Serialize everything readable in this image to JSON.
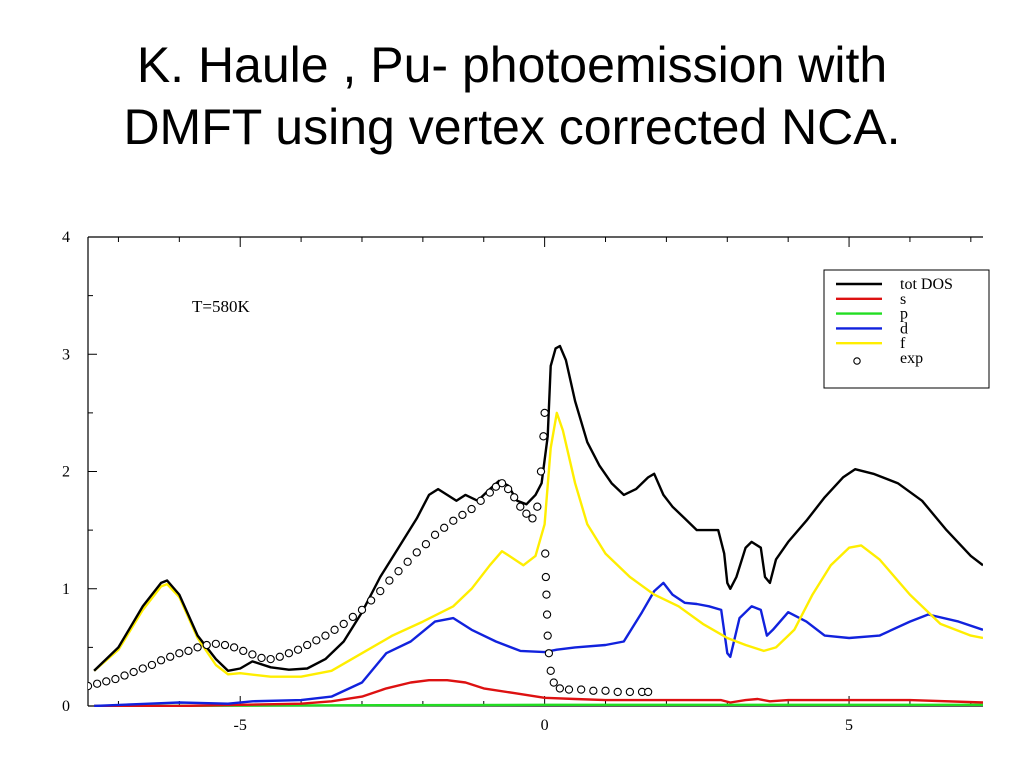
{
  "title": {
    "line1": "K. Haule , Pu- photoemission with",
    "line2": "DMFT using vertex corrected NCA."
  },
  "chart_data": {
    "type": "line",
    "annotation": "T=580K",
    "xlim": [
      -7.5,
      7.2
    ],
    "ylim": [
      0,
      4
    ],
    "x_ticks": [
      -5,
      0,
      5
    ],
    "y_ticks": [
      0,
      1,
      2,
      3,
      4
    ],
    "grid": false,
    "legend_placement": "top-right",
    "series": [
      {
        "name": "tot DOS",
        "color": "#000000",
        "style": "line",
        "points": [
          [
            -7.4,
            0.3
          ],
          [
            -7,
            0.5
          ],
          [
            -6.6,
            0.85
          ],
          [
            -6.3,
            1.05
          ],
          [
            -6.2,
            1.07
          ],
          [
            -6,
            0.95
          ],
          [
            -5.7,
            0.6
          ],
          [
            -5.4,
            0.4
          ],
          [
            -5.2,
            0.3
          ],
          [
            -5,
            0.32
          ],
          [
            -4.8,
            0.38
          ],
          [
            -4.5,
            0.33
          ],
          [
            -4.2,
            0.31
          ],
          [
            -3.9,
            0.32
          ],
          [
            -3.6,
            0.4
          ],
          [
            -3.3,
            0.55
          ],
          [
            -3,
            0.8
          ],
          [
            -2.7,
            1.1
          ],
          [
            -2.4,
            1.35
          ],
          [
            -2.1,
            1.6
          ],
          [
            -1.9,
            1.8
          ],
          [
            -1.75,
            1.85
          ],
          [
            -1.6,
            1.8
          ],
          [
            -1.45,
            1.75
          ],
          [
            -1.3,
            1.8
          ],
          [
            -1.1,
            1.75
          ],
          [
            -0.9,
            1.85
          ],
          [
            -0.75,
            1.92
          ],
          [
            -0.6,
            1.88
          ],
          [
            -0.45,
            1.75
          ],
          [
            -0.3,
            1.72
          ],
          [
            -0.15,
            1.8
          ],
          [
            -0.05,
            1.9
          ],
          [
            0.05,
            2.3
          ],
          [
            0.1,
            2.9
          ],
          [
            0.18,
            3.05
          ],
          [
            0.25,
            3.07
          ],
          [
            0.35,
            2.95
          ],
          [
            0.5,
            2.6
          ],
          [
            0.7,
            2.25
          ],
          [
            0.9,
            2.05
          ],
          [
            1.1,
            1.9
          ],
          [
            1.3,
            1.8
          ],
          [
            1.5,
            1.85
          ],
          [
            1.7,
            1.95
          ],
          [
            1.8,
            1.98
          ],
          [
            1.95,
            1.8
          ],
          [
            2.1,
            1.7
          ],
          [
            2.3,
            1.6
          ],
          [
            2.5,
            1.5
          ],
          [
            2.7,
            1.5
          ],
          [
            2.85,
            1.5
          ],
          [
            2.95,
            1.3
          ],
          [
            3,
            1.05
          ],
          [
            3.05,
            1.0
          ],
          [
            3.15,
            1.1
          ],
          [
            3.3,
            1.35
          ],
          [
            3.4,
            1.4
          ],
          [
            3.55,
            1.35
          ],
          [
            3.62,
            1.1
          ],
          [
            3.7,
            1.05
          ],
          [
            3.8,
            1.25
          ],
          [
            4,
            1.4
          ],
          [
            4.3,
            1.58
          ],
          [
            4.6,
            1.78
          ],
          [
            4.9,
            1.95
          ],
          [
            5.1,
            2.02
          ],
          [
            5.4,
            1.98
          ],
          [
            5.8,
            1.9
          ],
          [
            6.2,
            1.75
          ],
          [
            6.6,
            1.5
          ],
          [
            7,
            1.28
          ],
          [
            7.2,
            1.2
          ]
        ]
      },
      {
        "name": "s",
        "color": "#dd1111",
        "style": "line",
        "points": [
          [
            -7.4,
            0.0
          ],
          [
            -6,
            0.0
          ],
          [
            -4,
            0.02
          ],
          [
            -3.5,
            0.04
          ],
          [
            -3,
            0.08
          ],
          [
            -2.6,
            0.15
          ],
          [
            -2.2,
            0.2
          ],
          [
            -1.9,
            0.22
          ],
          [
            -1.6,
            0.22
          ],
          [
            -1.3,
            0.2
          ],
          [
            -1.0,
            0.15
          ],
          [
            -0.5,
            0.11
          ],
          [
            0,
            0.07
          ],
          [
            0.5,
            0.06
          ],
          [
            1,
            0.05
          ],
          [
            2,
            0.05
          ],
          [
            2.9,
            0.05
          ],
          [
            3.05,
            0.03
          ],
          [
            3.3,
            0.05
          ],
          [
            3.5,
            0.06
          ],
          [
            3.7,
            0.04
          ],
          [
            4,
            0.05
          ],
          [
            5,
            0.05
          ],
          [
            6,
            0.05
          ],
          [
            7.2,
            0.03
          ]
        ]
      },
      {
        "name": "p",
        "color": "#22dd22",
        "style": "line",
        "points": [
          [
            -7.4,
            0.0
          ],
          [
            0,
            0.01
          ],
          [
            7.2,
            0.01
          ]
        ]
      },
      {
        "name": "d",
        "color": "#1122dd",
        "style": "line",
        "points": [
          [
            -7.4,
            0.0
          ],
          [
            -6.5,
            0.02
          ],
          [
            -6,
            0.03
          ],
          [
            -5.2,
            0.02
          ],
          [
            -4.8,
            0.04
          ],
          [
            -4,
            0.05
          ],
          [
            -3.5,
            0.08
          ],
          [
            -3,
            0.2
          ],
          [
            -2.6,
            0.45
          ],
          [
            -2.2,
            0.55
          ],
          [
            -1.8,
            0.72
          ],
          [
            -1.5,
            0.75
          ],
          [
            -1.2,
            0.65
          ],
          [
            -0.8,
            0.55
          ],
          [
            -0.4,
            0.47
          ],
          [
            0,
            0.46
          ],
          [
            0.2,
            0.48
          ],
          [
            0.5,
            0.5
          ],
          [
            1,
            0.52
          ],
          [
            1.3,
            0.55
          ],
          [
            1.6,
            0.8
          ],
          [
            1.8,
            0.98
          ],
          [
            1.95,
            1.05
          ],
          [
            2.1,
            0.95
          ],
          [
            2.3,
            0.88
          ],
          [
            2.5,
            0.87
          ],
          [
            2.7,
            0.85
          ],
          [
            2.9,
            0.82
          ],
          [
            3.0,
            0.45
          ],
          [
            3.05,
            0.42
          ],
          [
            3.2,
            0.75
          ],
          [
            3.4,
            0.85
          ],
          [
            3.55,
            0.82
          ],
          [
            3.65,
            0.6
          ],
          [
            3.75,
            0.65
          ],
          [
            4,
            0.8
          ],
          [
            4.3,
            0.72
          ],
          [
            4.6,
            0.6
          ],
          [
            5,
            0.58
          ],
          [
            5.5,
            0.6
          ],
          [
            6,
            0.72
          ],
          [
            6.3,
            0.78
          ],
          [
            6.8,
            0.72
          ],
          [
            7.2,
            0.65
          ]
        ]
      },
      {
        "name": "f",
        "color": "#ffee00",
        "style": "line",
        "points": [
          [
            -7.4,
            0.3
          ],
          [
            -7,
            0.48
          ],
          [
            -6.6,
            0.82
          ],
          [
            -6.3,
            1.02
          ],
          [
            -6.2,
            1.04
          ],
          [
            -6,
            0.93
          ],
          [
            -5.7,
            0.58
          ],
          [
            -5.4,
            0.35
          ],
          [
            -5.2,
            0.27
          ],
          [
            -5,
            0.28
          ],
          [
            -4.5,
            0.25
          ],
          [
            -4,
            0.25
          ],
          [
            -3.5,
            0.3
          ],
          [
            -3,
            0.45
          ],
          [
            -2.5,
            0.6
          ],
          [
            -2,
            0.72
          ],
          [
            -1.5,
            0.85
          ],
          [
            -1.2,
            1.0
          ],
          [
            -0.9,
            1.2
          ],
          [
            -0.7,
            1.32
          ],
          [
            -0.55,
            1.27
          ],
          [
            -0.35,
            1.2
          ],
          [
            -0.15,
            1.28
          ],
          [
            0,
            1.55
          ],
          [
            0.1,
            2.2
          ],
          [
            0.2,
            2.5
          ],
          [
            0.3,
            2.35
          ],
          [
            0.5,
            1.9
          ],
          [
            0.7,
            1.55
          ],
          [
            1,
            1.3
          ],
          [
            1.4,
            1.1
          ],
          [
            1.8,
            0.95
          ],
          [
            2.2,
            0.85
          ],
          [
            2.6,
            0.7
          ],
          [
            3,
            0.58
          ],
          [
            3.3,
            0.52
          ],
          [
            3.6,
            0.47
          ],
          [
            3.8,
            0.5
          ],
          [
            4.1,
            0.65
          ],
          [
            4.4,
            0.95
          ],
          [
            4.7,
            1.2
          ],
          [
            5,
            1.35
          ],
          [
            5.2,
            1.37
          ],
          [
            5.5,
            1.25
          ],
          [
            6,
            0.95
          ],
          [
            6.5,
            0.7
          ],
          [
            7,
            0.6
          ],
          [
            7.2,
            0.58
          ]
        ]
      },
      {
        "name": "exp",
        "color": "#000000",
        "style": "markers",
        "points": [
          [
            -7.8,
            0.16
          ],
          [
            -7.65,
            0.16
          ],
          [
            -7.5,
            0.17
          ],
          [
            -7.35,
            0.19
          ],
          [
            -7.2,
            0.21
          ],
          [
            -7.05,
            0.23
          ],
          [
            -6.9,
            0.26
          ],
          [
            -6.75,
            0.29
          ],
          [
            -6.6,
            0.32
          ],
          [
            -6.45,
            0.35
          ],
          [
            -6.3,
            0.39
          ],
          [
            -6.15,
            0.42
          ],
          [
            -6.0,
            0.45
          ],
          [
            -5.85,
            0.47
          ],
          [
            -5.7,
            0.5
          ],
          [
            -5.55,
            0.52
          ],
          [
            -5.4,
            0.53
          ],
          [
            -5.25,
            0.52
          ],
          [
            -5.1,
            0.5
          ],
          [
            -4.95,
            0.47
          ],
          [
            -4.8,
            0.44
          ],
          [
            -4.65,
            0.41
          ],
          [
            -4.5,
            0.4
          ],
          [
            -4.35,
            0.42
          ],
          [
            -4.2,
            0.45
          ],
          [
            -4.05,
            0.48
          ],
          [
            -3.9,
            0.52
          ],
          [
            -3.75,
            0.56
          ],
          [
            -3.6,
            0.6
          ],
          [
            -3.45,
            0.65
          ],
          [
            -3.3,
            0.7
          ],
          [
            -3.15,
            0.76
          ],
          [
            -3.0,
            0.82
          ],
          [
            -2.85,
            0.9
          ],
          [
            -2.7,
            0.98
          ],
          [
            -2.55,
            1.07
          ],
          [
            -2.4,
            1.15
          ],
          [
            -2.25,
            1.23
          ],
          [
            -2.1,
            1.31
          ],
          [
            -1.95,
            1.38
          ],
          [
            -1.8,
            1.46
          ],
          [
            -1.65,
            1.52
          ],
          [
            -1.5,
            1.58
          ],
          [
            -1.35,
            1.63
          ],
          [
            -1.2,
            1.68
          ],
          [
            -1.05,
            1.75
          ],
          [
            -0.9,
            1.82
          ],
          [
            -0.8,
            1.87
          ],
          [
            -0.7,
            1.9
          ],
          [
            -0.6,
            1.85
          ],
          [
            -0.5,
            1.78
          ],
          [
            -0.4,
            1.7
          ],
          [
            -0.3,
            1.64
          ],
          [
            -0.2,
            1.6
          ],
          [
            -0.12,
            1.7
          ],
          [
            -0.06,
            2.0
          ],
          [
            -0.02,
            2.3
          ],
          [
            0.0,
            2.5
          ],
          [
            0.01,
            1.3
          ],
          [
            0.02,
            1.1
          ],
          [
            0.03,
            0.95
          ],
          [
            0.04,
            0.78
          ],
          [
            0.05,
            0.6
          ],
          [
            0.07,
            0.45
          ],
          [
            0.1,
            0.3
          ],
          [
            0.15,
            0.2
          ],
          [
            0.25,
            0.15
          ],
          [
            0.4,
            0.14
          ],
          [
            0.6,
            0.14
          ],
          [
            0.8,
            0.13
          ],
          [
            1.0,
            0.13
          ],
          [
            1.2,
            0.12
          ],
          [
            1.4,
            0.12
          ],
          [
            1.6,
            0.12
          ],
          [
            1.7,
            0.12
          ]
        ]
      }
    ]
  }
}
